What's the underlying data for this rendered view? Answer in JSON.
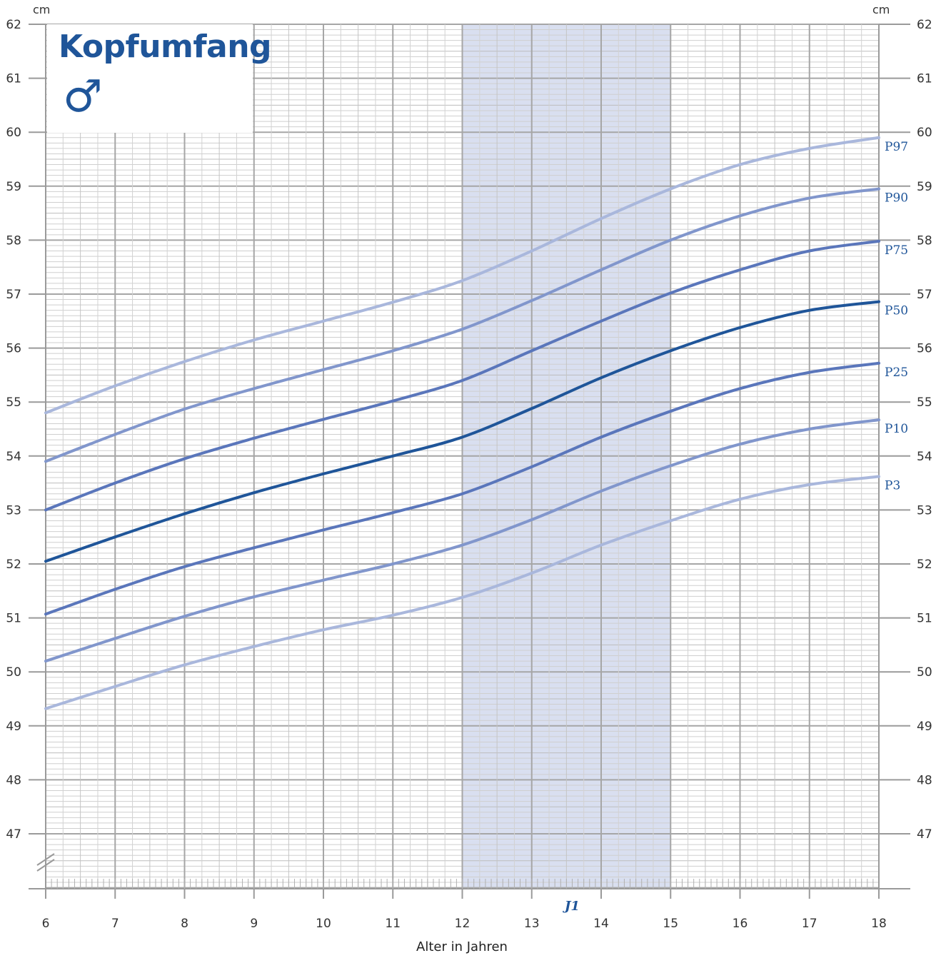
{
  "chart_data": {
    "type": "line",
    "title": "Kopfumfang",
    "sex_symbol": "♂",
    "y_unit": "cm",
    "xlabel": "Alter in Jahren",
    "xlim": [
      6,
      18
    ],
    "ylim": [
      46,
      62
    ],
    "y_ticks": [
      47,
      48,
      49,
      50,
      51,
      52,
      53,
      54,
      55,
      56,
      57,
      58,
      59,
      60,
      61,
      62
    ],
    "x_ticks": [
      6,
      7,
      8,
      9,
      10,
      11,
      12,
      13,
      14,
      15,
      16,
      17,
      18
    ],
    "shaded_region": {
      "x_from": 12,
      "x_to": 15,
      "label": "J1",
      "color": "#d9dff0"
    },
    "grid": true,
    "x": [
      6,
      7,
      8,
      9,
      10,
      11,
      12,
      13,
      14,
      15,
      16,
      17,
      18
    ],
    "series": [
      {
        "name": "P97",
        "color": "#a9b7dc",
        "values": [
          54.8,
          55.3,
          55.75,
          56.15,
          56.5,
          56.85,
          57.25,
          57.8,
          58.4,
          58.95,
          59.4,
          59.7,
          59.9
        ]
      },
      {
        "name": "P90",
        "color": "#8196cc",
        "values": [
          53.9,
          54.4,
          54.87,
          55.25,
          55.6,
          55.95,
          56.35,
          56.88,
          57.45,
          58.0,
          58.45,
          58.78,
          58.95
        ]
      },
      {
        "name": "P75",
        "color": "#5a76bb",
        "values": [
          53.0,
          53.5,
          53.95,
          54.33,
          54.68,
          55.02,
          55.4,
          55.95,
          56.5,
          57.02,
          57.45,
          57.8,
          57.98
        ]
      },
      {
        "name": "P50",
        "color": "#1f5599",
        "values": [
          52.05,
          52.5,
          52.93,
          53.32,
          53.67,
          54.0,
          54.35,
          54.88,
          55.45,
          55.95,
          56.38,
          56.7,
          56.86
        ]
      },
      {
        "name": "P25",
        "color": "#5a76bb",
        "values": [
          51.07,
          51.53,
          51.95,
          52.3,
          52.63,
          52.95,
          53.3,
          53.8,
          54.35,
          54.83,
          55.25,
          55.55,
          55.72
        ]
      },
      {
        "name": "P10",
        "color": "#8196cc",
        "values": [
          50.2,
          50.62,
          51.03,
          51.39,
          51.7,
          52.0,
          52.35,
          52.82,
          53.35,
          53.82,
          54.22,
          54.5,
          54.67
        ]
      },
      {
        "name": "P3",
        "color": "#a9b7dc",
        "values": [
          49.32,
          49.73,
          50.13,
          50.47,
          50.78,
          51.05,
          51.38,
          51.83,
          52.35,
          52.8,
          53.2,
          53.47,
          53.62
        ]
      }
    ],
    "label_color": "#1f5599"
  }
}
